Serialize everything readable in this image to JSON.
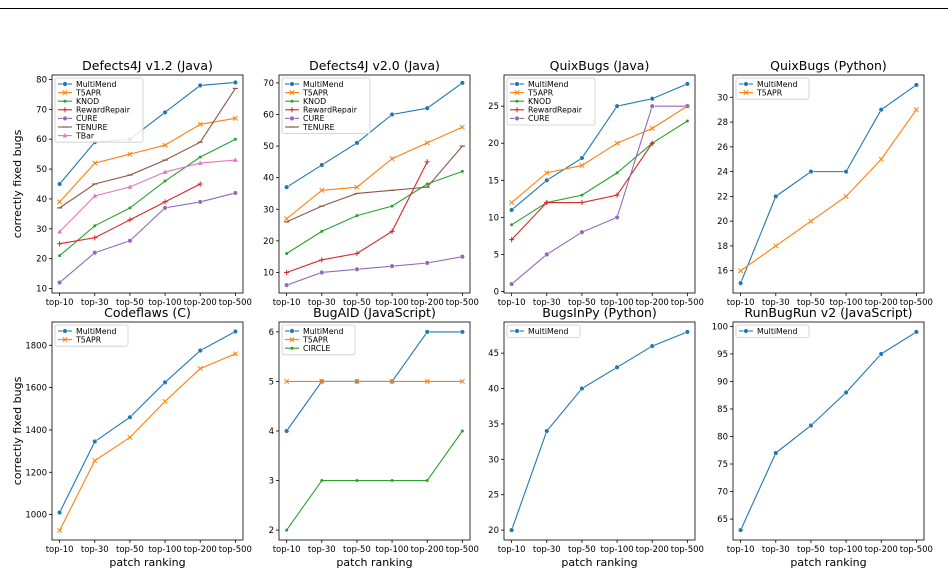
{
  "figure": {
    "categories": [
      "top-10",
      "top-30",
      "top-50",
      "top-100",
      "top-200",
      "top-500"
    ],
    "xlabel": "patch ranking",
    "ylabel": "correctly fixed bugs"
  },
  "colors": {
    "MultiMend": "#1f77b4",
    "T5APR": "#ff7f0e",
    "KNOD": "#2ca02c",
    "RewardRepair": "#d62728",
    "CURE": "#9467bd",
    "TENURE": "#8c564b",
    "TBar": "#e377c2",
    "CIRCLE": "#2ca02c"
  },
  "markers": {
    "MultiMend": "circle",
    "T5APR": "x",
    "KNOD": "dot",
    "RewardRepair": "plus",
    "CURE": "circle",
    "TENURE": "dash",
    "TBar": "triangle",
    "CIRCLE": "dot"
  },
  "chart_data": [
    {
      "type": "line",
      "title": "Defects4J v1.2 (Java)",
      "categories": [
        "top-10",
        "top-30",
        "top-50",
        "top-100",
        "top-200",
        "top-500"
      ],
      "ylim": [
        8.5,
        81.5
      ],
      "yticks": [
        10,
        20,
        30,
        40,
        50,
        60,
        70,
        80
      ],
      "series": [
        {
          "name": "MultiMend",
          "values": [
            45,
            59,
            60,
            69,
            78,
            79
          ]
        },
        {
          "name": "T5APR",
          "values": [
            39,
            52,
            55,
            58,
            65,
            67
          ]
        },
        {
          "name": "KNOD",
          "values": [
            21,
            31,
            37,
            46,
            54,
            60
          ]
        },
        {
          "name": "RewardRepair",
          "values": [
            25,
            27,
            33,
            39,
            45,
            null
          ]
        },
        {
          "name": "CURE",
          "values": [
            12,
            22,
            26,
            37,
            39,
            42
          ]
        },
        {
          "name": "TENURE",
          "values": [
            37,
            45,
            48,
            53,
            59,
            77
          ]
        },
        {
          "name": "TBar",
          "values": [
            29,
            41,
            44,
            49,
            52,
            53
          ]
        }
      ]
    },
    {
      "type": "line",
      "title": "Defects4J v2.0 (Java)",
      "categories": [
        "top-10",
        "top-30",
        "top-50",
        "top-100",
        "top-200",
        "top-500"
      ],
      "ylim": [
        3.5,
        72.5
      ],
      "yticks": [
        10,
        20,
        30,
        40,
        50,
        60,
        70
      ],
      "series": [
        {
          "name": "MultiMend",
          "values": [
            37,
            44,
            51,
            60,
            62,
            70
          ]
        },
        {
          "name": "T5APR",
          "values": [
            27,
            36,
            37,
            46,
            51,
            56
          ]
        },
        {
          "name": "KNOD",
          "values": [
            16,
            23,
            28,
            31,
            38,
            42
          ]
        },
        {
          "name": "RewardRepair",
          "values": [
            10,
            14,
            16,
            23,
            45,
            null
          ]
        },
        {
          "name": "CURE",
          "values": [
            6,
            10,
            11,
            12,
            13,
            15
          ]
        },
        {
          "name": "TENURE",
          "values": [
            26,
            31,
            35,
            36,
            37,
            50
          ]
        }
      ]
    },
    {
      "type": "line",
      "title": "QuixBugs (Java)",
      "categories": [
        "top-10",
        "top-30",
        "top-50",
        "top-100",
        "top-200",
        "top-500"
      ],
      "ylim": [
        -0.2,
        29.2
      ],
      "yticks": [
        0,
        5,
        10,
        15,
        20,
        25
      ],
      "series": [
        {
          "name": "MultiMend",
          "values": [
            11,
            15,
            18,
            25,
            26,
            28
          ]
        },
        {
          "name": "T5APR",
          "values": [
            12,
            16,
            17,
            20,
            22,
            25
          ]
        },
        {
          "name": "KNOD",
          "values": [
            9,
            12,
            13,
            16,
            20,
            23
          ]
        },
        {
          "name": "RewardRepair",
          "values": [
            7,
            12,
            12,
            13,
            20,
            null
          ]
        },
        {
          "name": "CURE",
          "values": [
            1,
            5,
            8,
            10,
            25,
            25
          ]
        }
      ]
    },
    {
      "type": "line",
      "title": "QuixBugs (Python)",
      "categories": [
        "top-10",
        "top-30",
        "top-50",
        "top-100",
        "top-200",
        "top-500"
      ],
      "ylim": [
        14.2,
        31.8
      ],
      "yticks": [
        16,
        18,
        20,
        22,
        24,
        26,
        28,
        30
      ],
      "series": [
        {
          "name": "MultiMend",
          "values": [
            15,
            22,
            24,
            24,
            29,
            31
          ]
        },
        {
          "name": "T5APR",
          "values": [
            16,
            18,
            20,
            22,
            25,
            29
          ]
        }
      ]
    },
    {
      "type": "line",
      "title": "Codeflaws (C)",
      "categories": [
        "top-10",
        "top-30",
        "top-50",
        "top-100",
        "top-200",
        "top-500"
      ],
      "ylim": [
        880,
        1910
      ],
      "yticks": [
        1000,
        1200,
        1400,
        1600,
        1800
      ],
      "series": [
        {
          "name": "MultiMend",
          "values": [
            1010,
            1345,
            1460,
            1625,
            1775,
            1865
          ]
        },
        {
          "name": "T5APR",
          "values": [
            925,
            1255,
            1365,
            1535,
            1690,
            1760
          ]
        }
      ]
    },
    {
      "type": "line",
      "title": "BugAID (JavaScript)",
      "categories": [
        "top-10",
        "top-30",
        "top-50",
        "top-100",
        "top-200",
        "top-500"
      ],
      "ylim": [
        1.8,
        6.2
      ],
      "yticks": [
        2,
        3,
        4,
        5,
        6
      ],
      "series": [
        {
          "name": "MultiMend",
          "values": [
            4,
            5,
            5,
            5,
            6,
            6
          ]
        },
        {
          "name": "T5APR",
          "values": [
            5,
            5,
            5,
            5,
            5,
            5
          ]
        },
        {
          "name": "CIRCLE",
          "values": [
            2,
            3,
            3,
            3,
            3,
            4
          ]
        }
      ]
    },
    {
      "type": "line",
      "title": "BugsInPy (Python)",
      "categories": [
        "top-10",
        "top-30",
        "top-50",
        "top-100",
        "top-200",
        "top-500"
      ],
      "ylim": [
        18.6,
        49.4
      ],
      "yticks": [
        20,
        25,
        30,
        35,
        40,
        45
      ],
      "series": [
        {
          "name": "MultiMend",
          "values": [
            20,
            34,
            40,
            43,
            46,
            48
          ]
        }
      ]
    },
    {
      "type": "line",
      "title": "RunBugRun v2 (JavaScript)",
      "categories": [
        "top-10",
        "top-30",
        "top-50",
        "top-100",
        "top-200",
        "top-500"
      ],
      "ylim": [
        61.2,
        100.8
      ],
      "yticks": [
        65,
        70,
        75,
        80,
        85,
        90,
        95,
        100
      ],
      "series": [
        {
          "name": "MultiMend",
          "values": [
            63,
            77,
            82,
            88,
            95,
            99
          ]
        }
      ]
    }
  ]
}
